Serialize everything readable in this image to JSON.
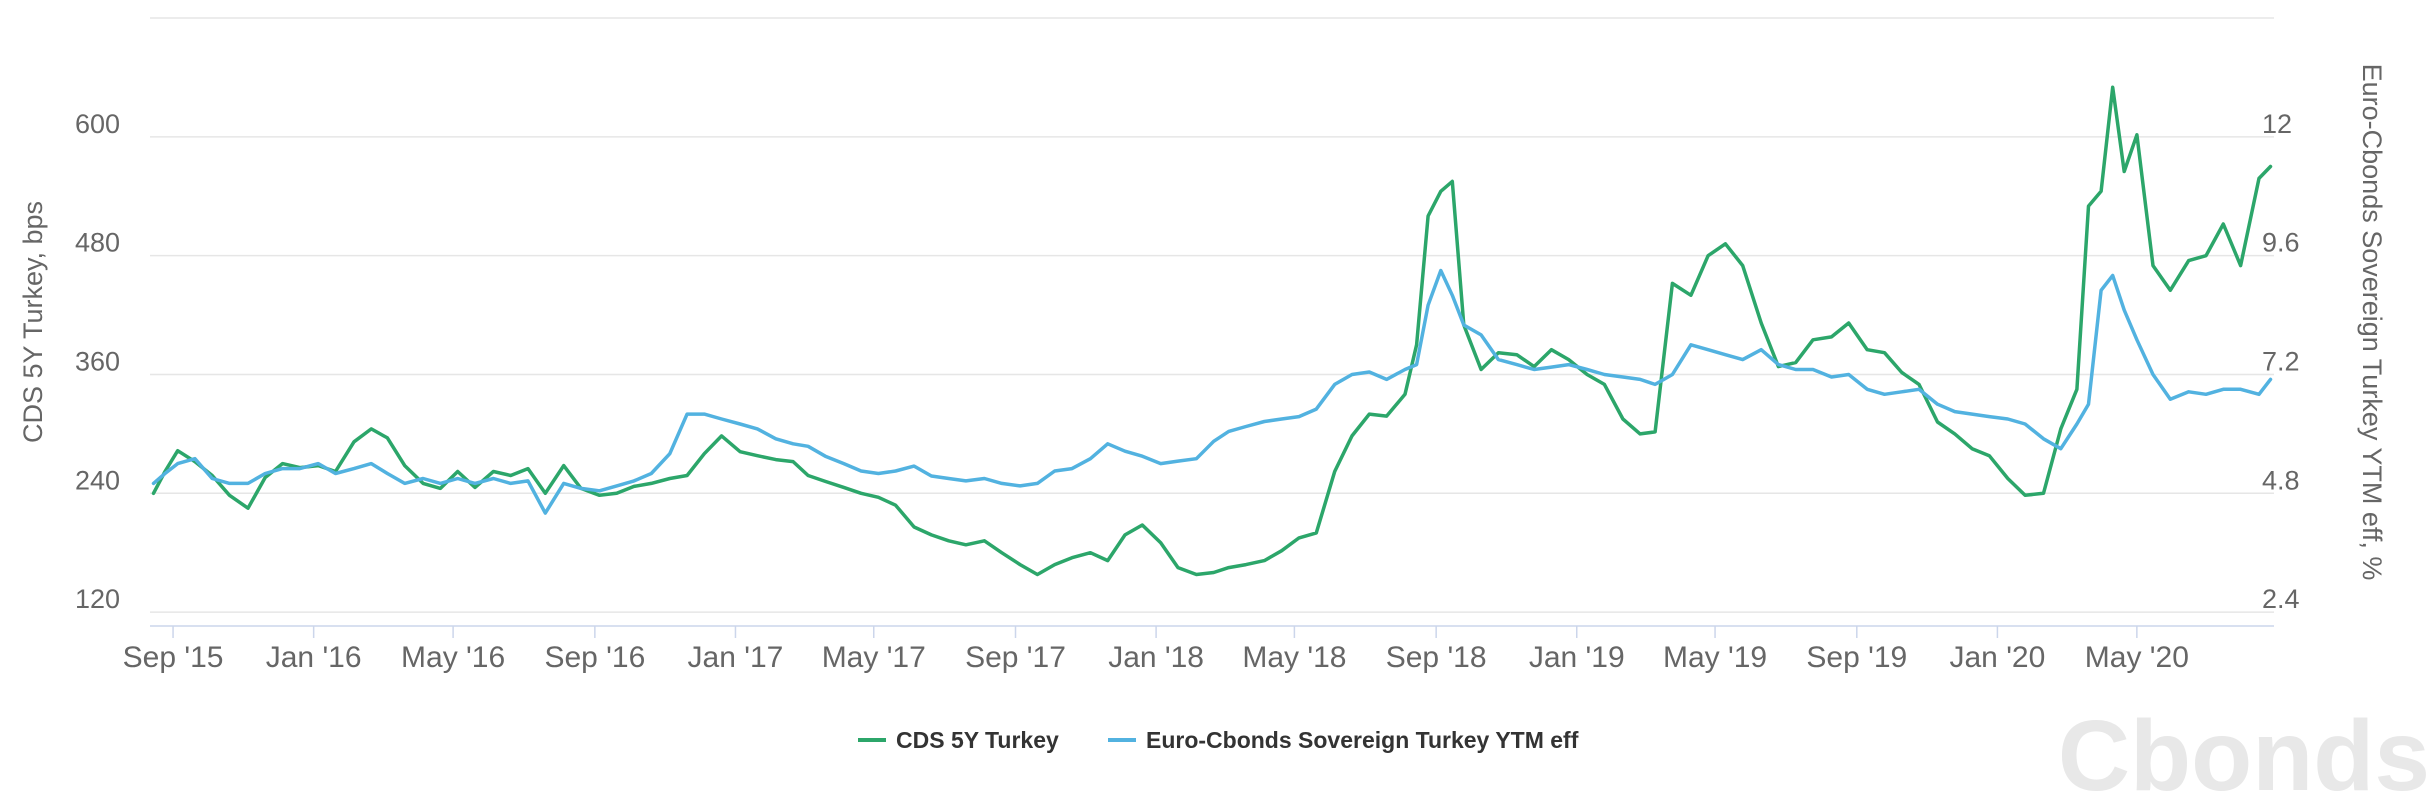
{
  "chart_data": {
    "type": "line",
    "x_tick_labels": [
      "Sep '15",
      "Jan '16",
      "May '16",
      "Sep '16",
      "Jan '17",
      "May '17",
      "Sep '17",
      "Jan '18",
      "May '18",
      "Sep '18",
      "Jan '19",
      "May '19",
      "Sep '19",
      "Jan '20",
      "May '20"
    ],
    "y_left": {
      "label": "CDS 5Y Turkey, bps",
      "ticks": [
        "120",
        "240",
        "360",
        "480",
        "600"
      ],
      "range": [
        106,
        720
      ]
    },
    "y_right": {
      "label": "Euro-Cbonds Sovereign Turkey YTM eff, %",
      "ticks": [
        "2.4",
        "4.8",
        "7.2",
        "9.6",
        "12"
      ],
      "range": [
        2.12,
        14.4
      ]
    },
    "legend_position": "bottom-center",
    "grid": true,
    "x": [
      "2015-08-15",
      "2015-08-25",
      "2015-09-05",
      "2015-09-20",
      "2015-10-05",
      "2015-10-20",
      "2015-11-05",
      "2015-11-20",
      "2015-12-05",
      "2015-12-20",
      "2016-01-05",
      "2016-01-20",
      "2016-02-05",
      "2016-02-20",
      "2016-03-05",
      "2016-03-20",
      "2016-04-05",
      "2016-04-20",
      "2016-05-05",
      "2016-05-20",
      "2016-06-05",
      "2016-06-20",
      "2016-07-05",
      "2016-07-20",
      "2016-08-05",
      "2016-08-20",
      "2016-09-05",
      "2016-09-20",
      "2016-10-05",
      "2016-10-20",
      "2016-11-05",
      "2016-11-20",
      "2016-12-05",
      "2016-12-20",
      "2017-01-05",
      "2017-01-20",
      "2017-02-05",
      "2017-02-20",
      "2017-03-05",
      "2017-03-20",
      "2017-04-05",
      "2017-04-20",
      "2017-05-05",
      "2017-05-20",
      "2017-06-05",
      "2017-06-20",
      "2017-07-05",
      "2017-07-20",
      "2017-08-05",
      "2017-08-20",
      "2017-09-05",
      "2017-09-20",
      "2017-10-05",
      "2017-10-20",
      "2017-11-05",
      "2017-11-20",
      "2017-12-05",
      "2017-12-20",
      "2018-01-05",
      "2018-01-20",
      "2018-02-05",
      "2018-02-20",
      "2018-03-05",
      "2018-03-20",
      "2018-04-05",
      "2018-04-20",
      "2018-05-05",
      "2018-05-20",
      "2018-06-05",
      "2018-06-20",
      "2018-07-05",
      "2018-07-20",
      "2018-08-05",
      "2018-08-15",
      "2018-08-25",
      "2018-09-05",
      "2018-09-15",
      "2018-09-25",
      "2018-10-10",
      "2018-10-25",
      "2018-11-10",
      "2018-11-25",
      "2018-12-10",
      "2018-12-25",
      "2019-01-10",
      "2019-01-25",
      "2019-02-10",
      "2019-02-25",
      "2019-03-10",
      "2019-03-25",
      "2019-04-10",
      "2019-04-25",
      "2019-05-10",
      "2019-05-25",
      "2019-06-10",
      "2019-06-25",
      "2019-07-10",
      "2019-07-25",
      "2019-08-10",
      "2019-08-25",
      "2019-09-10",
      "2019-09-25",
      "2019-10-10",
      "2019-10-25",
      "2019-11-10",
      "2019-11-25",
      "2019-12-10",
      "2019-12-25",
      "2020-01-10",
      "2020-01-25",
      "2020-02-10",
      "2020-02-25",
      "2020-03-10",
      "2020-03-20",
      "2020-03-31",
      "2020-04-10",
      "2020-04-20",
      "2020-05-01",
      "2020-05-15",
      "2020-05-30",
      "2020-06-15",
      "2020-06-30",
      "2020-07-15",
      "2020-07-30",
      "2020-08-15",
      "2020-08-25"
    ],
    "series": [
      {
        "name": "CDS 5Y Turkey",
        "axis": "left",
        "color": "#2ca66a",
        "values": [
          240,
          262,
          283,
          272,
          258,
          238,
          225,
          256,
          270,
          266,
          268,
          262,
          292,
          305,
          296,
          268,
          250,
          245,
          262,
          246,
          262,
          258,
          265,
          240,
          268,
          245,
          238,
          240,
          247,
          250,
          255,
          258,
          280,
          298,
          282,
          278,
          274,
          272,
          258,
          252,
          246,
          240,
          236,
          228,
          206,
          198,
          192,
          188,
          192,
          180,
          168,
          158,
          168,
          175,
          180,
          172,
          198,
          208,
          190,
          165,
          158,
          160,
          165,
          168,
          172,
          182,
          195,
          200,
          262,
          298,
          320,
          318,
          340,
          390,
          520,
          545,
          555,
          410,
          365,
          382,
          380,
          368,
          385,
          375,
          360,
          350,
          315,
          300,
          302,
          452,
          440,
          480,
          492,
          470,
          412,
          368,
          372,
          395,
          398,
          412,
          385,
          382,
          362,
          350,
          312,
          300,
          285,
          278,
          255,
          238,
          240,
          305,
          345,
          530,
          545,
          650,
          565,
          602,
          470,
          445,
          475,
          480,
          512,
          470,
          558,
          570
        ]
      },
      {
        "name": "Euro-Cbonds Sovereign Turkey YTM eff",
        "axis": "right",
        "color": "#52b2e0",
        "values": [
          5.0,
          5.2,
          5.4,
          5.5,
          5.1,
          5.0,
          5.0,
          5.2,
          5.3,
          5.3,
          5.4,
          5.2,
          5.3,
          5.4,
          5.2,
          5.0,
          5.1,
          5.0,
          5.1,
          5.0,
          5.1,
          5.0,
          5.05,
          4.4,
          5.0,
          4.9,
          4.85,
          4.95,
          5.05,
          5.2,
          5.6,
          6.4,
          6.4,
          6.3,
          6.2,
          6.1,
          5.9,
          5.8,
          5.75,
          5.55,
          5.4,
          5.25,
          5.2,
          5.25,
          5.35,
          5.15,
          5.1,
          5.05,
          5.1,
          5.0,
          4.95,
          5.0,
          5.25,
          5.3,
          5.5,
          5.8,
          5.65,
          5.55,
          5.4,
          5.45,
          5.5,
          5.85,
          6.05,
          6.15,
          6.25,
          6.3,
          6.35,
          6.5,
          7.0,
          7.2,
          7.25,
          7.1,
          7.3,
          7.4,
          8.6,
          9.3,
          8.8,
          8.2,
          8.0,
          7.5,
          7.4,
          7.3,
          7.35,
          7.4,
          7.3,
          7.2,
          7.15,
          7.1,
          7.0,
          7.2,
          7.8,
          7.7,
          7.6,
          7.5,
          7.7,
          7.4,
          7.3,
          7.3,
          7.15,
          7.2,
          6.9,
          6.8,
          6.85,
          6.9,
          6.6,
          6.45,
          6.4,
          6.35,
          6.3,
          6.2,
          5.9,
          5.7,
          6.2,
          6.6,
          8.9,
          9.2,
          8.5,
          7.9,
          7.2,
          6.7,
          6.85,
          6.8,
          6.9,
          6.9,
          6.8,
          7.1
        ]
      }
    ]
  },
  "watermark": "Cbonds"
}
